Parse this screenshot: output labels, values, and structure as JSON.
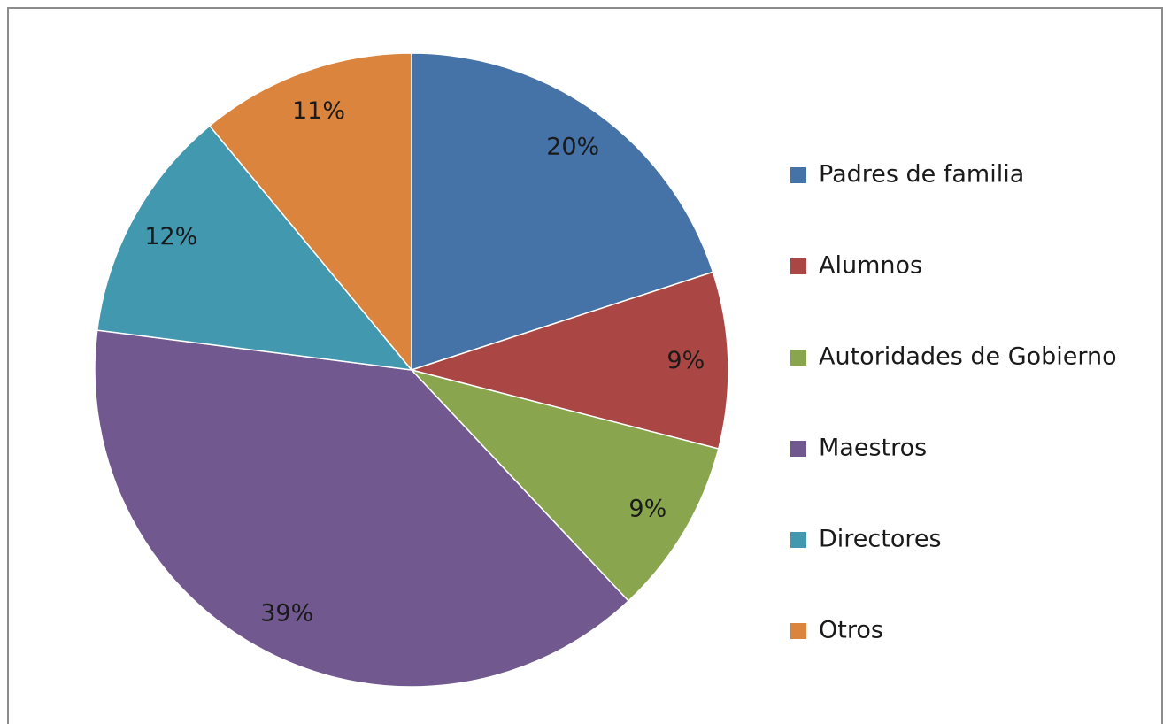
{
  "chart_data": {
    "type": "pie",
    "categories": [
      "Padres de familia",
      "Alumnos",
      "Autoridades de Gobierno",
      "Maestros",
      "Directores",
      "Otros"
    ],
    "values": [
      20,
      9,
      9,
      39,
      12,
      11
    ],
    "value_labels": [
      "20%",
      "9%",
      "9%",
      "39%",
      "12%",
      "11%"
    ],
    "colors": [
      "#4572A7",
      "#AA4643",
      "#89A54E",
      "#71588F",
      "#4198AF",
      "#DB843D"
    ],
    "legend": "right"
  }
}
